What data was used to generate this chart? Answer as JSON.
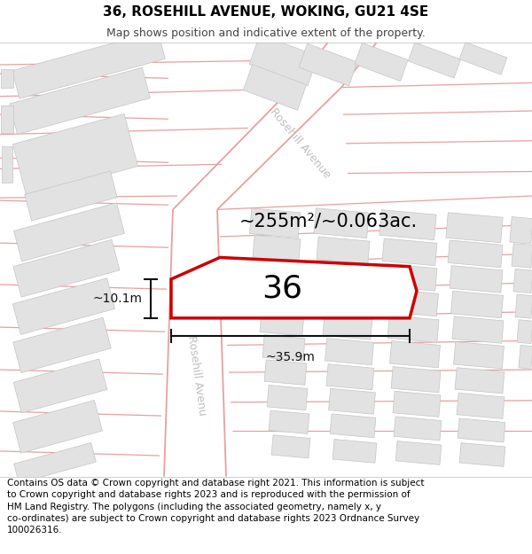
{
  "title": "36, ROSEHILL AVENUE, WOKING, GU21 4SE",
  "subtitle": "Map shows position and indicative extent of the property.",
  "footer": "Contains OS data © Crown copyright and database right 2021. This information is subject to Crown copyright and database rights 2023 and is reproduced with the permission of HM Land Registry. The polygons (including the associated geometry, namely x, y co-ordinates) are subject to Crown copyright and database rights 2023 Ordnance Survey 100026316.",
  "area_label": "~255m²/~0.063ac.",
  "width_label": "~35.9m",
  "height_label": "~10.1m",
  "property_number": "36",
  "road_label_upper": "Rosehill Avenue",
  "road_label_lower": "Rosehill Avenu",
  "map_bg": "#ffffff",
  "road_line_color": "#e8a0a0",
  "building_color": "#e0e0e0",
  "building_edge_color": "#c8c8c8",
  "property_outline_color": "#cc0000",
  "property_fill_color": "#ffffff",
  "dim_color": "#111111",
  "road_label_color": "#c0c0c0",
  "title_fontsize": 11,
  "subtitle_fontsize": 9,
  "footer_fontsize": 7.5,
  "area_fontsize": 15,
  "number_fontsize": 26,
  "dim_fontsize": 10,
  "road_label_fontsize": 9
}
